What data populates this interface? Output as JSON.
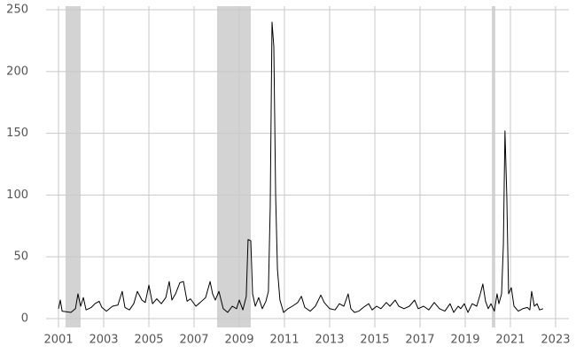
{
  "chart_data": {
    "type": "line",
    "color": "#000000",
    "grid": true,
    "shaded_color": "#d3d3d3",
    "shaded_regions": [
      [
        2001.31,
        2001.98
      ],
      [
        2008.02,
        2009.51
      ],
      [
        2020.18,
        2020.33
      ]
    ],
    "xlim": [
      2000.45,
      2023.59
    ],
    "xticks": [
      2001,
      2003,
      2005,
      2007,
      2009,
      2011,
      2013,
      2015,
      2017,
      2019,
      2021,
      2023
    ],
    "ylim": [
      -7.2,
      252.9
    ],
    "yticks": [
      0,
      50,
      100,
      150,
      200,
      250
    ],
    "x": [
      2001.0,
      2001.08,
      2001.16,
      2001.55,
      2001.75,
      2001.86,
      2001.98,
      2002.1,
      2002.22,
      2002.45,
      2002.61,
      2002.8,
      2002.92,
      2003.12,
      2003.39,
      2003.63,
      2003.82,
      2003.94,
      2004.14,
      2004.33,
      2004.49,
      2004.69,
      2004.84,
      2005.0,
      2005.16,
      2005.35,
      2005.55,
      2005.75,
      2005.9,
      2006.02,
      2006.18,
      2006.37,
      2006.53,
      2006.69,
      2006.84,
      2007.08,
      2007.27,
      2007.51,
      2007.71,
      2007.82,
      2007.94,
      2008.1,
      2008.29,
      2008.49,
      2008.69,
      2008.88,
      2009.0,
      2009.16,
      2009.31,
      2009.39,
      2009.51,
      2009.59,
      2009.71,
      2009.86,
      2010.02,
      2010.18,
      2010.29,
      2010.37,
      2010.45,
      2010.53,
      2010.61,
      2010.69,
      2010.8,
      2010.96,
      2011.16,
      2011.35,
      2011.59,
      2011.75,
      2011.9,
      2012.14,
      2012.37,
      2012.61,
      2012.76,
      2013.0,
      2013.24,
      2013.43,
      2013.63,
      2013.82,
      2013.94,
      2014.1,
      2014.29,
      2014.49,
      2014.73,
      2014.88,
      2015.08,
      2015.27,
      2015.51,
      2015.67,
      2015.9,
      2016.06,
      2016.29,
      2016.53,
      2016.76,
      2016.92,
      2017.16,
      2017.39,
      2017.63,
      2017.86,
      2018.1,
      2018.33,
      2018.49,
      2018.69,
      2018.8,
      2018.96,
      2019.12,
      2019.31,
      2019.51,
      2019.67,
      2019.78,
      2019.9,
      2020.02,
      2020.14,
      2020.29,
      2020.41,
      2020.49,
      2020.61,
      2020.69,
      2020.76,
      2020.84,
      2020.92,
      2021.04,
      2021.16,
      2021.35,
      2021.55,
      2021.75,
      2021.86,
      2021.94,
      2022.06,
      2022.18,
      2022.29,
      2022.45
    ],
    "values": [
      8,
      15,
      6,
      5,
      8,
      20,
      10,
      17,
      7,
      9,
      12,
      14,
      9,
      6,
      10,
      11,
      22,
      9,
      7,
      12,
      22,
      15,
      13,
      27,
      12,
      16,
      12,
      17,
      30,
      15,
      20,
      29,
      30,
      14,
      16,
      10,
      13,
      17,
      30,
      20,
      15,
      22,
      8,
      5,
      10,
      8,
      15,
      7,
      18,
      64,
      63,
      20,
      10,
      17,
      8,
      14,
      22,
      90,
      240,
      220,
      100,
      40,
      15,
      5,
      8,
      10,
      13,
      18,
      9,
      6,
      10,
      19,
      13,
      8,
      7,
      12,
      10,
      20,
      8,
      5,
      6,
      9,
      12,
      7,
      10,
      8,
      13,
      10,
      15,
      10,
      8,
      10,
      15,
      8,
      10,
      7,
      13,
      8,
      6,
      12,
      5,
      10,
      8,
      12,
      5,
      12,
      10,
      20,
      28,
      14,
      8,
      12,
      6,
      20,
      12,
      20,
      60,
      152,
      100,
      20,
      25,
      10,
      6,
      8,
      9,
      7,
      22,
      10,
      12,
      7,
      8
    ]
  }
}
